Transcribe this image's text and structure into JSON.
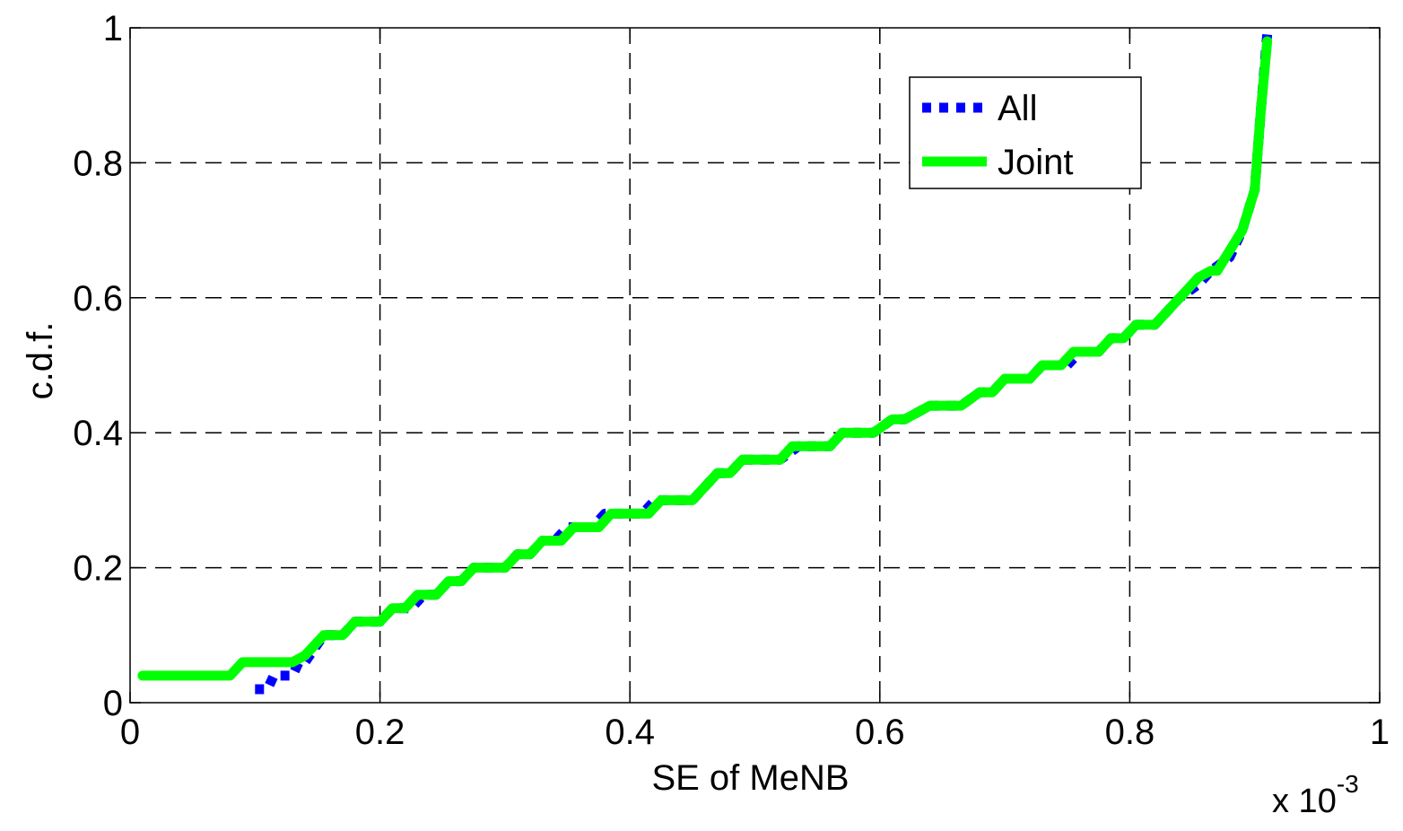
{
  "chart_data": {
    "type": "line",
    "title": "",
    "xlabel": "SE of MeNB",
    "ylabel": "c.d.f.",
    "x_exponent_base": "x 10",
    "x_exponent_power": "-3",
    "xlim": [
      0,
      1
    ],
    "ylim": [
      0,
      1
    ],
    "x_ticks": [
      0,
      0.2,
      0.4,
      0.6,
      0.8,
      1
    ],
    "x_tick_labels": [
      "0",
      "0.2",
      "0.4",
      "0.6",
      "0.8",
      "1"
    ],
    "y_ticks": [
      0,
      0.2,
      0.4,
      0.6,
      0.8,
      1
    ],
    "y_tick_labels": [
      "0",
      "0.2",
      "0.4",
      "0.6",
      "0.8",
      "1"
    ],
    "grid": true,
    "grid_style": "dashed",
    "legend_position": "top-right",
    "series": [
      {
        "name": "All",
        "color": "#0000ff",
        "style": "dotted",
        "points": [
          [
            0.1,
            0.02
          ],
          [
            0.11,
            0.02
          ],
          [
            0.115,
            0.04
          ],
          [
            0.13,
            0.04
          ],
          [
            0.135,
            0.06
          ],
          [
            0.14,
            0.06
          ],
          [
            0.155,
            0.1
          ],
          [
            0.17,
            0.1
          ],
          [
            0.18,
            0.12
          ],
          [
            0.2,
            0.12
          ],
          [
            0.21,
            0.14
          ],
          [
            0.225,
            0.14
          ],
          [
            0.235,
            0.16
          ],
          [
            0.245,
            0.16
          ],
          [
            0.255,
            0.18
          ],
          [
            0.265,
            0.18
          ],
          [
            0.275,
            0.2
          ],
          [
            0.3,
            0.2
          ],
          [
            0.31,
            0.22
          ],
          [
            0.32,
            0.22
          ],
          [
            0.33,
            0.24
          ],
          [
            0.34,
            0.24
          ],
          [
            0.35,
            0.26
          ],
          [
            0.37,
            0.26
          ],
          [
            0.38,
            0.28
          ],
          [
            0.41,
            0.28
          ],
          [
            0.42,
            0.3
          ],
          [
            0.45,
            0.3
          ],
          [
            0.47,
            0.34
          ],
          [
            0.48,
            0.34
          ],
          [
            0.49,
            0.36
          ],
          [
            0.52,
            0.36
          ],
          [
            0.535,
            0.38
          ],
          [
            0.56,
            0.38
          ],
          [
            0.57,
            0.4
          ],
          [
            0.595,
            0.4
          ],
          [
            0.61,
            0.42
          ],
          [
            0.62,
            0.42
          ],
          [
            0.64,
            0.44
          ],
          [
            0.665,
            0.44
          ],
          [
            0.68,
            0.46
          ],
          [
            0.69,
            0.46
          ],
          [
            0.7,
            0.48
          ],
          [
            0.72,
            0.48
          ],
          [
            0.73,
            0.5
          ],
          [
            0.75,
            0.5
          ],
          [
            0.76,
            0.52
          ],
          [
            0.775,
            0.52
          ],
          [
            0.785,
            0.54
          ],
          [
            0.795,
            0.54
          ],
          [
            0.805,
            0.56
          ],
          [
            0.82,
            0.56
          ],
          [
            0.84,
            0.6
          ],
          [
            0.855,
            0.62
          ],
          [
            0.865,
            0.64
          ],
          [
            0.88,
            0.66
          ],
          [
            0.89,
            0.7
          ],
          [
            0.9,
            0.76
          ],
          [
            0.905,
            0.88
          ],
          [
            0.91,
            0.99
          ]
        ]
      },
      {
        "name": "Joint",
        "color": "#00ff00",
        "style": "solid",
        "points": [
          [
            0.01,
            0.04
          ],
          [
            0.08,
            0.04
          ],
          [
            0.09,
            0.06
          ],
          [
            0.13,
            0.06
          ],
          [
            0.14,
            0.07
          ],
          [
            0.155,
            0.1
          ],
          [
            0.17,
            0.1
          ],
          [
            0.18,
            0.12
          ],
          [
            0.2,
            0.12
          ],
          [
            0.21,
            0.14
          ],
          [
            0.22,
            0.14
          ],
          [
            0.23,
            0.16
          ],
          [
            0.245,
            0.16
          ],
          [
            0.255,
            0.18
          ],
          [
            0.265,
            0.18
          ],
          [
            0.275,
            0.2
          ],
          [
            0.3,
            0.2
          ],
          [
            0.31,
            0.22
          ],
          [
            0.32,
            0.22
          ],
          [
            0.33,
            0.24
          ],
          [
            0.345,
            0.24
          ],
          [
            0.355,
            0.26
          ],
          [
            0.375,
            0.26
          ],
          [
            0.385,
            0.28
          ],
          [
            0.415,
            0.28
          ],
          [
            0.425,
            0.3
          ],
          [
            0.45,
            0.3
          ],
          [
            0.47,
            0.34
          ],
          [
            0.48,
            0.34
          ],
          [
            0.49,
            0.36
          ],
          [
            0.52,
            0.36
          ],
          [
            0.53,
            0.38
          ],
          [
            0.56,
            0.38
          ],
          [
            0.57,
            0.4
          ],
          [
            0.595,
            0.4
          ],
          [
            0.61,
            0.42
          ],
          [
            0.62,
            0.42
          ],
          [
            0.64,
            0.44
          ],
          [
            0.665,
            0.44
          ],
          [
            0.68,
            0.46
          ],
          [
            0.69,
            0.46
          ],
          [
            0.7,
            0.48
          ],
          [
            0.72,
            0.48
          ],
          [
            0.73,
            0.5
          ],
          [
            0.745,
            0.5
          ],
          [
            0.755,
            0.52
          ],
          [
            0.775,
            0.52
          ],
          [
            0.785,
            0.54
          ],
          [
            0.795,
            0.54
          ],
          [
            0.805,
            0.56
          ],
          [
            0.82,
            0.56
          ],
          [
            0.84,
            0.6
          ],
          [
            0.855,
            0.63
          ],
          [
            0.865,
            0.64
          ],
          [
            0.87,
            0.64
          ],
          [
            0.89,
            0.7
          ],
          [
            0.9,
            0.76
          ],
          [
            0.905,
            0.88
          ],
          [
            0.91,
            0.98
          ]
        ]
      }
    ]
  }
}
